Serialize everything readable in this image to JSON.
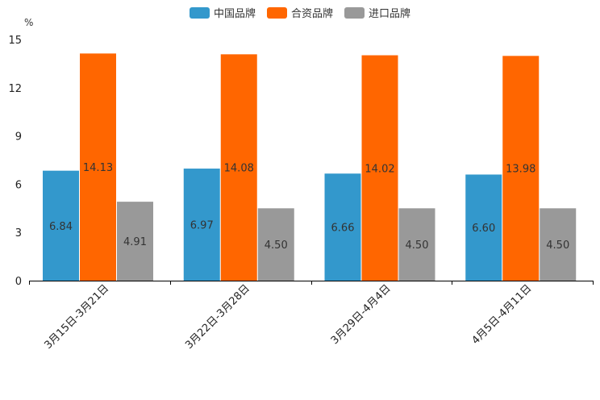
{
  "chart_data": {
    "type": "bar",
    "unit": "%",
    "categories": [
      "3月15日-3月21日",
      "3月22日-3月28日",
      "3月29日-4月4日",
      "4月5日-4月11日"
    ],
    "series": [
      {
        "name": "中国品牌",
        "color": "#3398cc",
        "values": [
          6.84,
          6.97,
          6.66,
          6.6
        ],
        "labels": [
          "6.84",
          "6.97",
          "6.66",
          "6.60"
        ]
      },
      {
        "name": "合资品牌",
        "color": "#ff6600",
        "values": [
          14.13,
          14.08,
          14.02,
          13.98
        ],
        "labels": [
          "14.13",
          "14.08",
          "14.02",
          "13.98"
        ]
      },
      {
        "name": "进口品牌",
        "color": "#999999",
        "values": [
          4.91,
          4.5,
          4.5,
          4.5
        ],
        "labels": [
          "4.91",
          "4.50",
          "4.50",
          "4.50"
        ]
      }
    ],
    "ylim": [
      0,
      15
    ],
    "yticks": [
      "0",
      "3",
      "6",
      "9",
      "12",
      "15"
    ],
    "legend_position": "top-center"
  }
}
